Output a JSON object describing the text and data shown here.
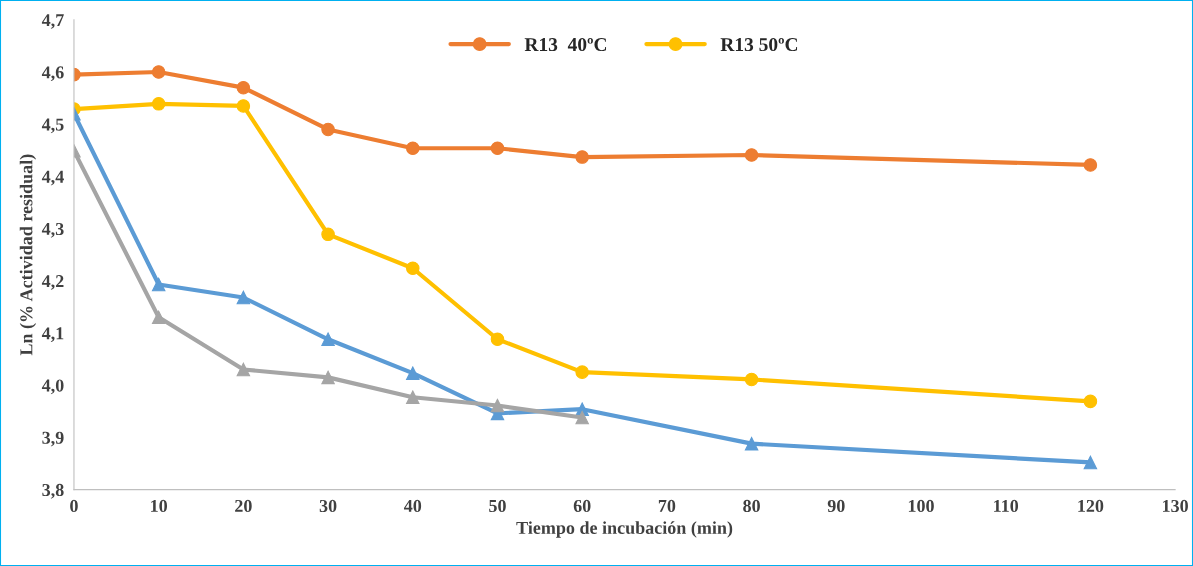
{
  "chart_data": {
    "type": "line",
    "xlabel": "Tiempo de incubación (min)",
    "ylabel": "Ln (% Actividad residual)",
    "xlim": [
      0,
      130
    ],
    "xticks": [
      0,
      10,
      20,
      30,
      40,
      50,
      60,
      70,
      80,
      90,
      100,
      110,
      120,
      130
    ],
    "ylim": [
      3.8,
      4.7
    ],
    "yticks": [
      {
        "value": 3.8,
        "label": "3,8"
      },
      {
        "value": 3.9,
        "label": "3,9"
      },
      {
        "value": 4.0,
        "label": "4,0"
      },
      {
        "value": 4.1,
        "label": "4,1"
      },
      {
        "value": 4.2,
        "label": "4,2"
      },
      {
        "value": 4.3,
        "label": "4,3"
      },
      {
        "value": 4.4,
        "label": "4,4"
      },
      {
        "value": 4.5,
        "label": "4,5"
      },
      {
        "value": 4.6,
        "label": "4,6"
      },
      {
        "value": 4.7,
        "label": "4,7"
      }
    ],
    "grid": false,
    "legend": "top",
    "line_style": "solid",
    "series": [
      {
        "name": "R13  40ºC",
        "color": "#ed7d31",
        "marker": "circle",
        "x": [
          0,
          10,
          20,
          30,
          40,
          50,
          60,
          80,
          120
        ],
        "values": [
          4.595,
          4.6,
          4.57,
          4.49,
          4.454,
          4.454,
          4.437,
          4.441,
          4.422
        ]
      },
      {
        "name": "R13 50ºC",
        "color": "#ffc000",
        "marker": "circle",
        "x": [
          0,
          10,
          20,
          30,
          40,
          50,
          60,
          80,
          120
        ],
        "values": [
          4.529,
          4.539,
          4.535,
          4.289,
          4.224,
          4.088,
          4.025,
          4.011,
          3.969
        ]
      },
      {
        "color": "#5b9bd5",
        "marker": "triangle",
        "x": [
          0,
          10,
          20,
          30,
          40,
          50,
          60,
          80,
          120
        ],
        "values": [
          4.52,
          4.193,
          4.168,
          4.088,
          4.023,
          3.946,
          3.954,
          3.888,
          3.852
        ]
      },
      {
        "color": "#a5a5a5",
        "marker": "triangle",
        "x": [
          0,
          10,
          20,
          30,
          40,
          50,
          60
        ],
        "values": [
          4.449,
          4.13,
          4.03,
          4.015,
          3.977,
          3.961,
          3.938
        ]
      }
    ]
  }
}
